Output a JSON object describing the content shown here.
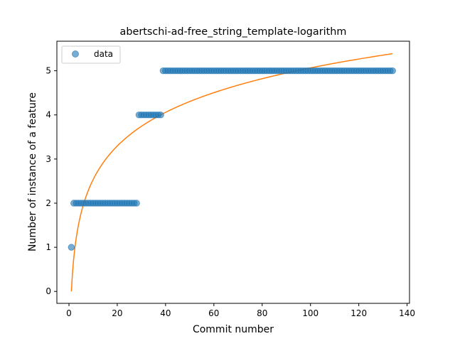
{
  "chart_data": {
    "type": "scatter",
    "title": "abertschi-ad-free_string_template-logarithm",
    "xlabel": "Commit number",
    "ylabel": "Number of instance of a feature",
    "xlim": [
      -5,
      141
    ],
    "ylim": [
      -0.27,
      5.67
    ],
    "xticks": [
      0,
      20,
      40,
      60,
      80,
      100,
      120,
      140
    ],
    "yticks": [
      0,
      1,
      2,
      3,
      4,
      5
    ],
    "legend": {
      "position": "top-left",
      "entries": [
        "data"
      ]
    },
    "grid": false,
    "colors": {
      "data": "#1f77b4",
      "fit": "#ff7f0e"
    },
    "series": [
      {
        "name": "data",
        "kind": "scatter",
        "segments": [
          {
            "x_start": 1,
            "x_end": 1,
            "y": 1
          },
          {
            "x_start": 2,
            "x_end": 28,
            "y": 2
          },
          {
            "x_start": 29,
            "x_end": 38,
            "y": 4
          },
          {
            "x_start": 39,
            "x_end": 134,
            "y": 5
          }
        ]
      },
      {
        "kind": "line",
        "fit": {
          "model": "logarithm",
          "a": 1.1,
          "b": 0.0,
          "x_start": 1,
          "x_end": 134
        }
      }
    ]
  }
}
